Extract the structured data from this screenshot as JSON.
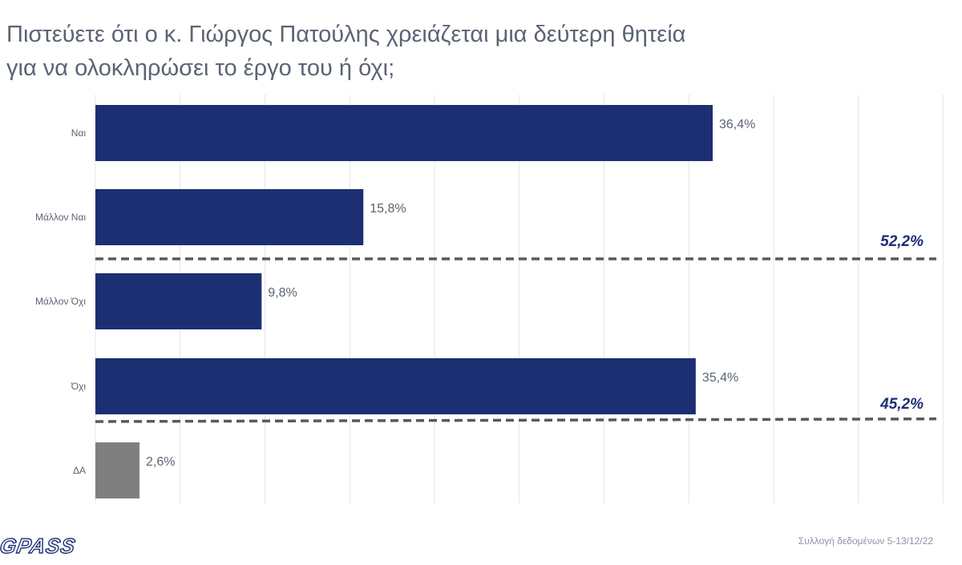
{
  "title": {
    "line1": "Πιστεύετε ότι ο κ. Γιώργος Πατούλης χρειάζεται μια δεύτερη θητεία",
    "line2": "για να ολοκληρώσει το έργο του ή όχι;"
  },
  "chart_data": {
    "type": "bar",
    "orientation": "horizontal",
    "categories": [
      "Ναι",
      "Μάλλον Ναι",
      "Μάλλον Όχι",
      "Όχι",
      "ΔΑ"
    ],
    "values": [
      36.4,
      15.8,
      9.8,
      35.4,
      2.6
    ],
    "value_labels": [
      "36,4%",
      "15,8%",
      "9,8%",
      "35,4%",
      "2,6%"
    ],
    "colors": [
      "#1c2f72",
      "#1c2f72",
      "#1c2f72",
      "#1c2f72",
      "#7f7f7f"
    ],
    "xlim": [
      0,
      50
    ],
    "grid": true,
    "group_totals": [
      {
        "label": "52,2%",
        "categories": [
          "Ναι",
          "Μάλλον Ναι"
        ],
        "value": 52.2
      },
      {
        "label": "45,2%",
        "categories": [
          "Μάλλον Όχι",
          "Όχι"
        ],
        "value": 45.2
      }
    ]
  },
  "footer": {
    "logo": "GPASS",
    "note": "Συλλογή δεδομένων 5-13/12/22"
  },
  "colors": {
    "bar": "#1c2f72",
    "bar_dk": "#7f7f7f",
    "total_label": "#1c2f72",
    "title": "#5b6474"
  }
}
